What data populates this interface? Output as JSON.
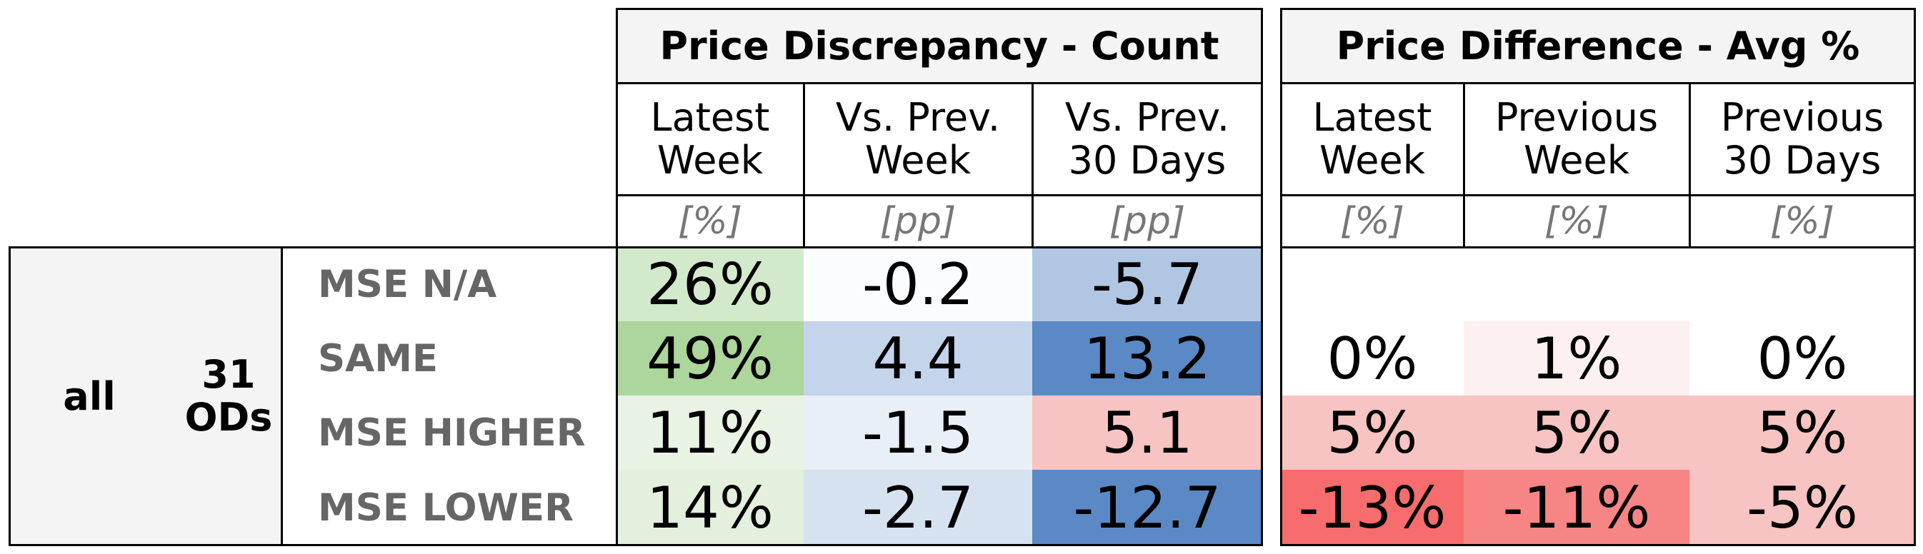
{
  "row_group": {
    "label": "all",
    "count_label": "31\nODs"
  },
  "rows": [
    {
      "label": "MSE N/A"
    },
    {
      "label": "SAME"
    },
    {
      "label": "MSE HIGHER"
    },
    {
      "label": "MSE LOWER"
    }
  ],
  "discrepancy": {
    "title": "Price Discrepancy - Count",
    "columns": [
      {
        "header": "Latest\nWeek",
        "unit": "[%]"
      },
      {
        "header": "Vs. Prev.\nWeek",
        "unit": "[pp]"
      },
      {
        "header": "Vs. Prev.\n30 Days",
        "unit": "[pp]"
      }
    ],
    "values": [
      [
        "26%",
        "-0.2",
        "-5.7"
      ],
      [
        "49%",
        "4.4",
        "13.2"
      ],
      [
        "11%",
        "-1.5",
        "5.1"
      ],
      [
        "14%",
        "-2.7",
        "-12.7"
      ]
    ],
    "colors": [
      [
        "#d3e9cc",
        "#fbfcfe",
        "#b1c6e2"
      ],
      [
        "#acd69b",
        "#c4d4ea",
        "#5b89c6"
      ],
      [
        "#e8f3e4",
        "#e9eff7",
        "#f8c3c3"
      ],
      [
        "#e2f0dd",
        "#d7e2f0",
        "#5b89c6"
      ]
    ]
  },
  "difference": {
    "title": "Price Difference - Avg %",
    "columns": [
      {
        "header": "Latest\nWeek",
        "unit": "[%]"
      },
      {
        "header": "Previous\nWeek",
        "unit": "[%]"
      },
      {
        "header": "Previous\n30 Days",
        "unit": "[%]"
      }
    ],
    "values": [
      [
        "",
        "",
        ""
      ],
      [
        "0%",
        "1%",
        "0%"
      ],
      [
        "5%",
        "5%",
        "5%"
      ],
      [
        "-13%",
        "-11%",
        "-5%"
      ]
    ],
    "colors": [
      [
        "#ffffff",
        "#ffffff",
        "#ffffff"
      ],
      [
        "#ffffff",
        "#fdf0f0",
        "#ffffff"
      ],
      [
        "#f8c3c3",
        "#f8c3c3",
        "#f8c3c3"
      ],
      [
        "#f76c6c",
        "#f88585",
        "#f8c3c3"
      ]
    ]
  }
}
